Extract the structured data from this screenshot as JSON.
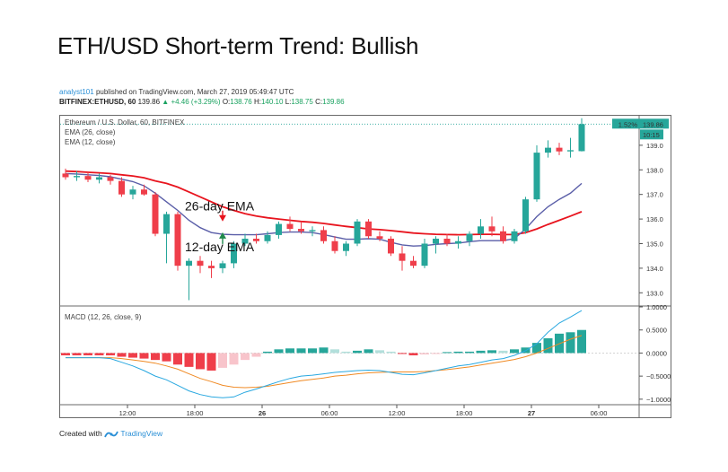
{
  "page": {
    "title": "ETH/USD Short-term Trend: Bullish",
    "author": "analyst101",
    "published": "published on TradingView.com, March 27, 2019 05:49:47 UTC",
    "symbol_line": {
      "symbol": "BITFINEX:ETHUSD, 60",
      "last": "139.86",
      "change": "+4.46 (+3.29%)",
      "o_label": "O:",
      "o": "138.76",
      "h_label": "H:",
      "h": "140.10",
      "l_label": "L:",
      "l": "138.75",
      "c_label": "C:",
      "c": "139.86"
    },
    "footer": {
      "created_with": "Created with",
      "brand": "TradingView"
    }
  },
  "colors": {
    "up": "#26a69a",
    "down": "#ef3e4a",
    "ema26": "#e8141e",
    "ema12": "#5a5ea8",
    "macd": "#29a8e0",
    "signal": "#f08a24",
    "hist_up_light": "#b2dfdb",
    "hist_down_light": "#f8c4cb"
  },
  "chart_data": [
    {
      "type": "candlestick",
      "title": "Ethereum / U.S. Dollar, 60, BITFINEX",
      "legend": [
        "EMA (26, close)",
        "EMA (12, close)"
      ],
      "price_label": "139.86",
      "change_label": "1.52%",
      "countdown": "10:15",
      "ylim": [
        132.5,
        140.2
      ],
      "yticks": [
        "139.0",
        "138.0",
        "137.0",
        "136.0",
        "135.0",
        "134.0",
        "133.0"
      ],
      "ytick_values": [
        139,
        138,
        137,
        136,
        135,
        134,
        133
      ],
      "xticks": [
        "12:00",
        "18:00",
        "26",
        "06:00",
        "12:00",
        "18:00",
        "27",
        "06:00"
      ],
      "xtick_index": [
        6,
        12,
        18,
        24,
        30,
        36,
        42,
        48
      ],
      "annotations": [
        {
          "text": "26-day EMA",
          "index": 14,
          "price": 136.05,
          "arrow": "down"
        },
        {
          "text": "12-day EMA",
          "index": 14,
          "price": 135.35,
          "arrow": "up"
        }
      ],
      "candles": [
        {
          "o": 137.85,
          "h": 138.05,
          "l": 137.6,
          "c": 137.7
        },
        {
          "o": 137.7,
          "h": 137.95,
          "l": 137.55,
          "c": 137.75
        },
        {
          "o": 137.75,
          "h": 137.9,
          "l": 137.5,
          "c": 137.6
        },
        {
          "o": 137.6,
          "h": 137.85,
          "l": 137.45,
          "c": 137.7
        },
        {
          "o": 137.7,
          "h": 137.8,
          "l": 137.4,
          "c": 137.55
        },
        {
          "o": 137.55,
          "h": 137.7,
          "l": 136.9,
          "c": 137.0
        },
        {
          "o": 137.0,
          "h": 137.35,
          "l": 136.8,
          "c": 137.2
        },
        {
          "o": 137.2,
          "h": 137.4,
          "l": 136.95,
          "c": 137.0
        },
        {
          "o": 137.0,
          "h": 137.1,
          "l": 135.3,
          "c": 135.4
        },
        {
          "o": 135.4,
          "h": 136.3,
          "l": 134.2,
          "c": 136.2
        },
        {
          "o": 136.2,
          "h": 136.3,
          "l": 133.9,
          "c": 134.1
        },
        {
          "o": 134.1,
          "h": 134.4,
          "l": 132.7,
          "c": 134.3
        },
        {
          "o": 134.3,
          "h": 134.5,
          "l": 133.8,
          "c": 134.1
        },
        {
          "o": 134.1,
          "h": 134.3,
          "l": 133.6,
          "c": 134.0
        },
        {
          "o": 134.0,
          "h": 134.3,
          "l": 133.8,
          "c": 134.2
        },
        {
          "o": 134.2,
          "h": 135.1,
          "l": 134.0,
          "c": 135.0
        },
        {
          "o": 135.0,
          "h": 135.4,
          "l": 134.9,
          "c": 135.2
        },
        {
          "o": 135.2,
          "h": 135.4,
          "l": 135.0,
          "c": 135.1
        },
        {
          "o": 135.1,
          "h": 135.5,
          "l": 135.0,
          "c": 135.35
        },
        {
          "o": 135.35,
          "h": 135.9,
          "l": 135.2,
          "c": 135.8
        },
        {
          "o": 135.8,
          "h": 136.1,
          "l": 135.5,
          "c": 135.6
        },
        {
          "o": 135.6,
          "h": 135.9,
          "l": 135.4,
          "c": 135.5
        },
        {
          "o": 135.5,
          "h": 135.7,
          "l": 135.3,
          "c": 135.55
        },
        {
          "o": 135.55,
          "h": 135.7,
          "l": 135.0,
          "c": 135.1
        },
        {
          "o": 135.1,
          "h": 135.3,
          "l": 134.6,
          "c": 134.7
        },
        {
          "o": 134.7,
          "h": 135.1,
          "l": 134.5,
          "c": 135.0
        },
        {
          "o": 135.0,
          "h": 136.0,
          "l": 134.9,
          "c": 135.9
        },
        {
          "o": 135.9,
          "h": 136.0,
          "l": 135.2,
          "c": 135.3
        },
        {
          "o": 135.3,
          "h": 135.5,
          "l": 135.1,
          "c": 135.2
        },
        {
          "o": 135.2,
          "h": 135.3,
          "l": 134.5,
          "c": 134.6
        },
        {
          "o": 134.6,
          "h": 134.9,
          "l": 133.9,
          "c": 134.3
        },
        {
          "o": 134.3,
          "h": 134.5,
          "l": 134.0,
          "c": 134.1
        },
        {
          "o": 134.1,
          "h": 135.2,
          "l": 134.0,
          "c": 135.0
        },
        {
          "o": 135.0,
          "h": 135.3,
          "l": 134.6,
          "c": 135.2
        },
        {
          "o": 135.2,
          "h": 135.4,
          "l": 134.9,
          "c": 135.0
        },
        {
          "o": 135.0,
          "h": 135.3,
          "l": 134.8,
          "c": 135.1
        },
        {
          "o": 135.1,
          "h": 135.5,
          "l": 134.9,
          "c": 135.4
        },
        {
          "o": 135.4,
          "h": 136.0,
          "l": 135.2,
          "c": 135.7
        },
        {
          "o": 135.7,
          "h": 136.1,
          "l": 135.3,
          "c": 135.5
        },
        {
          "o": 135.5,
          "h": 135.7,
          "l": 135.0,
          "c": 135.1
        },
        {
          "o": 135.1,
          "h": 135.6,
          "l": 135.0,
          "c": 135.5
        },
        {
          "o": 135.5,
          "h": 136.9,
          "l": 135.4,
          "c": 136.8
        },
        {
          "o": 136.8,
          "h": 139.0,
          "l": 136.7,
          "c": 138.7
        },
        {
          "o": 138.7,
          "h": 139.2,
          "l": 138.5,
          "c": 138.9
        },
        {
          "o": 138.9,
          "h": 139.1,
          "l": 138.6,
          "c": 138.75
        },
        {
          "o": 138.75,
          "h": 139.3,
          "l": 138.5,
          "c": 138.8
        },
        {
          "o": 138.76,
          "h": 140.1,
          "l": 138.75,
          "c": 139.86
        }
      ],
      "ema26": [
        137.95,
        137.93,
        137.9,
        137.88,
        137.85,
        137.8,
        137.75,
        137.68,
        137.55,
        137.45,
        137.3,
        137.1,
        136.9,
        136.7,
        136.5,
        136.35,
        136.22,
        136.12,
        136.05,
        136.0,
        135.95,
        135.9,
        135.87,
        135.82,
        135.76,
        135.7,
        135.65,
        135.6,
        135.57,
        135.53,
        135.48,
        135.43,
        135.4,
        135.38,
        135.37,
        135.36,
        135.37,
        135.38,
        135.38,
        135.37,
        135.37,
        135.45,
        135.6,
        135.78,
        135.95,
        136.12,
        136.3
      ],
      "ema12": [
        137.85,
        137.83,
        137.8,
        137.77,
        137.72,
        137.62,
        137.52,
        137.35,
        137.05,
        136.7,
        136.35,
        135.95,
        135.65,
        135.45,
        135.38,
        135.36,
        135.36,
        135.36,
        135.4,
        135.45,
        135.47,
        135.47,
        135.45,
        135.37,
        135.27,
        135.18,
        135.18,
        135.2,
        135.18,
        135.05,
        134.95,
        134.9,
        134.92,
        134.97,
        135.0,
        135.02,
        135.08,
        135.12,
        135.12,
        135.12,
        135.2,
        135.6,
        136.1,
        136.5,
        136.8,
        137.05,
        137.45
      ]
    },
    {
      "type": "histogram+line",
      "title": "MACD (12, 26, close, 9)",
      "ylim": [
        -1.1,
        1.0
      ],
      "yticks": [
        "1.0000",
        "0.5000",
        "0.0000",
        "−0.5000",
        "−1.0000"
      ],
      "ytick_values": [
        1.0,
        0.5,
        0.0,
        -0.5,
        -1.0
      ],
      "histogram": [
        -0.05,
        -0.05,
        -0.05,
        -0.05,
        -0.05,
        -0.08,
        -0.1,
        -0.12,
        -0.15,
        -0.18,
        -0.25,
        -0.3,
        -0.35,
        -0.38,
        -0.32,
        -0.25,
        -0.15,
        -0.08,
        0.03,
        0.08,
        0.1,
        0.1,
        0.1,
        0.12,
        0.08,
        0.03,
        0.05,
        0.08,
        0.06,
        0.03,
        -0.02,
        -0.05,
        -0.03,
        -0.02,
        0.02,
        0.03,
        0.03,
        0.05,
        0.06,
        0.05,
        0.08,
        0.12,
        0.22,
        0.32,
        0.42,
        0.45,
        0.5
      ],
      "macd": [
        -0.1,
        -0.1,
        -0.1,
        -0.1,
        -0.12,
        -0.2,
        -0.28,
        -0.38,
        -0.5,
        -0.58,
        -0.7,
        -0.82,
        -0.9,
        -0.95,
        -0.97,
        -0.95,
        -0.85,
        -0.78,
        -0.7,
        -0.62,
        -0.55,
        -0.5,
        -0.48,
        -0.45,
        -0.42,
        -0.4,
        -0.38,
        -0.37,
        -0.38,
        -0.42,
        -0.46,
        -0.47,
        -0.43,
        -0.38,
        -0.33,
        -0.28,
        -0.25,
        -0.2,
        -0.15,
        -0.12,
        -0.05,
        0.05,
        0.2,
        0.45,
        0.65,
        0.78,
        0.92
      ],
      "signal": [
        -0.1,
        -0.1,
        -0.1,
        -0.1,
        -0.1,
        -0.12,
        -0.15,
        -0.18,
        -0.22,
        -0.28,
        -0.35,
        -0.45,
        -0.55,
        -0.62,
        -0.7,
        -0.74,
        -0.75,
        -0.74,
        -0.72,
        -0.68,
        -0.64,
        -0.6,
        -0.57,
        -0.54,
        -0.5,
        -0.48,
        -0.45,
        -0.43,
        -0.42,
        -0.41,
        -0.41,
        -0.41,
        -0.4,
        -0.38,
        -0.36,
        -0.33,
        -0.3,
        -0.26,
        -0.22,
        -0.18,
        -0.14,
        -0.08,
        0.0,
        0.1,
        0.2,
        0.3,
        0.38
      ]
    }
  ]
}
